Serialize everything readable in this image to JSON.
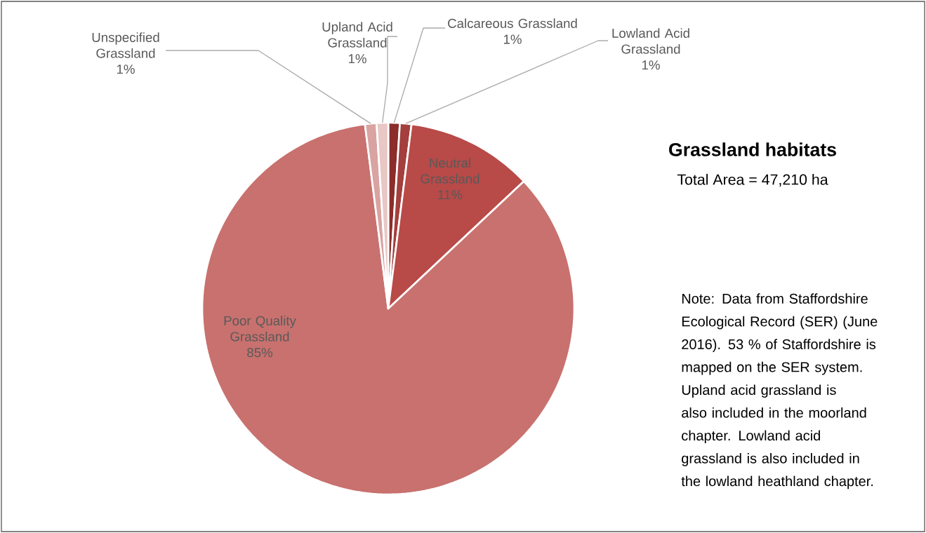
{
  "chart_data": {
    "type": "pie",
    "title": "Grassland habitats",
    "subtitle": "Total Area = 47,210 ha",
    "categories": [
      "Calcareous Grassland",
      "Lowland Acid Grassland",
      "Neutral Grassland",
      "Poor Quality Grassland",
      "Unspecified Grassland",
      "Upland Acid Grassland"
    ],
    "values": [
      1,
      1,
      11,
      85,
      1,
      1
    ],
    "colors": [
      "#8b2d2b",
      "#a33f3d",
      "#b84a48",
      "#c8716e",
      "#d9a3a1",
      "#e8c7c5"
    ],
    "value_labels": [
      "1%",
      "1%",
      "11%",
      "85%",
      "1%",
      "1%"
    ],
    "annotations": [
      "Note: Data from Staffordshire Ecological Record (SER) (June 2016). 53 % of Staffordshire is mapped on the SER system. Upland acid grassland is also included in the moorland chapter. Lowland acid grassland is also included in the lowland heathland chapter."
    ]
  }
}
